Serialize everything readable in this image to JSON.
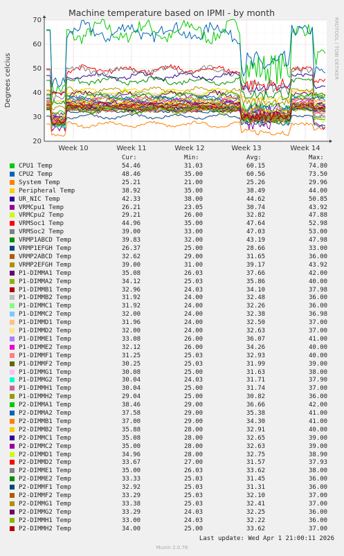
{
  "chart_data": {
    "type": "line",
    "title": "Machine temperature based on IPMI - by month",
    "ylabel": "Degrees celcius",
    "side_label": "RRDTOOL / TOBI OETIKER",
    "ylim": [
      20,
      70
    ],
    "yticks": [
      20,
      30,
      40,
      50,
      60,
      70
    ],
    "xticks": [
      "Week 10",
      "Week 11",
      "Week 12",
      "Week 13",
      "Week 14"
    ],
    "grid": true,
    "legend_headers": {
      "cur": "Cur:",
      "min": "Min:",
      "avg": "Avg:",
      "max": "Max:"
    },
    "series": [
      {
        "name": "CPU1 Temp",
        "color": "#00cc00",
        "cur": "54.46",
        "min": "31.03",
        "avg": "60.15",
        "max": "74.80"
      },
      {
        "name": "CPU2 Temp",
        "color": "#0066b3",
        "cur": "48.46",
        "min": "35.00",
        "avg": "60.56",
        "max": "73.50"
      },
      {
        "name": "System Temp",
        "color": "#ff8000",
        "cur": "25.21",
        "min": "21.00",
        "avg": "25.26",
        "max": "29.96"
      },
      {
        "name": "Peripheral Temp",
        "color": "#ffcc00",
        "cur": "38.92",
        "min": "35.00",
        "avg": "38.49",
        "max": "44.00"
      },
      {
        "name": "UR_NIC Temp",
        "color": "#330099",
        "cur": "42.33",
        "min": "38.00",
        "avg": "44.62",
        "max": "50.85"
      },
      {
        "name": "VRMCpu1 Temp",
        "color": "#990099",
        "cur": "26.21",
        "min": "23.05",
        "avg": "30.74",
        "max": "43.92"
      },
      {
        "name": "VRMCpu2 Temp",
        "color": "#ccff00",
        "cur": "29.21",
        "min": "26.00",
        "avg": "32.82",
        "max": "47.88"
      },
      {
        "name": "VRMSoc1 Temp",
        "color": "#ff0000",
        "cur": "44.96",
        "min": "35.00",
        "avg": "47.64",
        "max": "52.98"
      },
      {
        "name": "VRMSoc2 Temp",
        "color": "#808080",
        "cur": "39.00",
        "min": "33.00",
        "avg": "47.03",
        "max": "53.00"
      },
      {
        "name": "VRMP1ABCD Temp",
        "color": "#008f00",
        "cur": "39.83",
        "min": "32.00",
        "avg": "43.19",
        "max": "47.98"
      },
      {
        "name": "VRMP1EFGH Temp",
        "color": "#00487d",
        "cur": "26.37",
        "min": "25.00",
        "avg": "28.66",
        "max": "33.00"
      },
      {
        "name": "VRMP2ABCD Temp",
        "color": "#b35a00",
        "cur": "32.62",
        "min": "29.00",
        "avg": "31.65",
        "max": "36.00"
      },
      {
        "name": "VRMP2EFGH Temp",
        "color": "#b38f00",
        "cur": "39.00",
        "min": "31.00",
        "avg": "39.17",
        "max": "43.92"
      },
      {
        "name": "P1-DIMMA1 Temp",
        "color": "#6b006b",
        "cur": "35.08",
        "min": "26.03",
        "avg": "37.66",
        "max": "42.00"
      },
      {
        "name": "P1-DIMMA2 Temp",
        "color": "#8fb300",
        "cur": "34.12",
        "min": "25.03",
        "avg": "35.86",
        "max": "40.00"
      },
      {
        "name": "P1-DIMMB1 Temp",
        "color": "#b30000",
        "cur": "32.96",
        "min": "24.03",
        "avg": "34.10",
        "max": "37.98"
      },
      {
        "name": "P1-DIMMB2 Temp",
        "color": "#bebebe",
        "cur": "31.92",
        "min": "24.00",
        "avg": "32.48",
        "max": "36.00"
      },
      {
        "name": "P1-DIMMC1 Temp",
        "color": "#80ff80",
        "cur": "31.92",
        "min": "24.00",
        "avg": "32.26",
        "max": "36.00"
      },
      {
        "name": "P1-DIMMC2 Temp",
        "color": "#80c9ff",
        "cur": "32.00",
        "min": "24.00",
        "avg": "32.38",
        "max": "36.98"
      },
      {
        "name": "P1-DIMMD1 Temp",
        "color": "#ffc080",
        "cur": "31.96",
        "min": "24.00",
        "avg": "32.50",
        "max": "37.00"
      },
      {
        "name": "P1-DIMMD2 Temp",
        "color": "#ffe680",
        "cur": "32.00",
        "min": "24.00",
        "avg": "32.63",
        "max": "37.00"
      },
      {
        "name": "P1-DIMME1 Temp",
        "color": "#aa80ff",
        "cur": "33.08",
        "min": "26.00",
        "avg": "36.07",
        "max": "41.00"
      },
      {
        "name": "P1-DIMME2 Temp",
        "color": "#ee00cc",
        "cur": "32.12",
        "min": "26.00",
        "avg": "34.26",
        "max": "40.00"
      },
      {
        "name": "P1-DIMMF1 Temp",
        "color": "#ff8080",
        "cur": "31.25",
        "min": "25.03",
        "avg": "32.93",
        "max": "40.00"
      },
      {
        "name": "P1-DIMMF2 Temp",
        "color": "#666600",
        "cur": "30.25",
        "min": "25.03",
        "avg": "31.99",
        "max": "39.00"
      },
      {
        "name": "P1-DIMMG1 Temp",
        "color": "#ffbfff",
        "cur": "30.08",
        "min": "25.00",
        "avg": "31.63",
        "max": "38.00"
      },
      {
        "name": "P1-DIMMG2 Temp",
        "color": "#00ffcc",
        "cur": "30.04",
        "min": "24.03",
        "avg": "31.71",
        "max": "37.90"
      },
      {
        "name": "P1-DIMMH1 Temp",
        "color": "#cc6699",
        "cur": "30.04",
        "min": "25.00",
        "avg": "31.74",
        "max": "37.00"
      },
      {
        "name": "P1-DIMMH2 Temp",
        "color": "#999900",
        "cur": "29.04",
        "min": "25.00",
        "avg": "30.82",
        "max": "36.00"
      },
      {
        "name": "P2-DIMMA1 Temp",
        "color": "#00cc00",
        "cur": "38.46",
        "min": "29.00",
        "avg": "36.66",
        "max": "42.00"
      },
      {
        "name": "P2-DIMMA2 Temp",
        "color": "#0066b3",
        "cur": "37.58",
        "min": "29.00",
        "avg": "35.38",
        "max": "41.00"
      },
      {
        "name": "P2-DIMMB1 Temp",
        "color": "#ff8000",
        "cur": "37.00",
        "min": "29.00",
        "avg": "34.30",
        "max": "41.00"
      },
      {
        "name": "P2-DIMMB2 Temp",
        "color": "#ffcc00",
        "cur": "35.88",
        "min": "28.00",
        "avg": "32.91",
        "max": "40.00"
      },
      {
        "name": "P2-DIMMC1 Temp",
        "color": "#330099",
        "cur": "35.08",
        "min": "28.00",
        "avg": "32.65",
        "max": "39.00"
      },
      {
        "name": "P2-DIMMC2 Temp",
        "color": "#990099",
        "cur": "35.00",
        "min": "28.00",
        "avg": "32.63",
        "max": "39.00"
      },
      {
        "name": "P2-DIMMD1 Temp",
        "color": "#ccff00",
        "cur": "34.96",
        "min": "28.00",
        "avg": "32.75",
        "max": "38.90"
      },
      {
        "name": "P2-DIMMD2 Temp",
        "color": "#ff0000",
        "cur": "33.67",
        "min": "27.00",
        "avg": "31.57",
        "max": "37.93"
      },
      {
        "name": "P2-DIMME1 Temp",
        "color": "#808080",
        "cur": "35.00",
        "min": "26.03",
        "avg": "33.62",
        "max": "38.00"
      },
      {
        "name": "P2-DIMME2 Temp",
        "color": "#008f00",
        "cur": "33.33",
        "min": "25.03",
        "avg": "31.45",
        "max": "36.00"
      },
      {
        "name": "P2-DIMMF1 Temp",
        "color": "#00487d",
        "cur": "32.92",
        "min": "25.03",
        "avg": "31.31",
        "max": "36.00"
      },
      {
        "name": "P2-DIMMF2 Temp",
        "color": "#b35a00",
        "cur": "33.29",
        "min": "25.03",
        "avg": "32.10",
        "max": "37.00"
      },
      {
        "name": "P2-DIMMG1 Temp",
        "color": "#b38f00",
        "cur": "33.38",
        "min": "25.03",
        "avg": "32.41",
        "max": "37.00"
      },
      {
        "name": "P2-DIMMG2 Temp",
        "color": "#6b006b",
        "cur": "33.29",
        "min": "24.03",
        "avg": "32.25",
        "max": "36.00"
      },
      {
        "name": "P2-DIMMH1 Temp",
        "color": "#8fb300",
        "cur": "33.00",
        "min": "24.03",
        "avg": "32.22",
        "max": "36.00"
      },
      {
        "name": "P2-DIMMH2 Temp",
        "color": "#b30000",
        "cur": "34.00",
        "min": "25.00",
        "avg": "33.62",
        "max": "37.00"
      }
    ]
  },
  "footer": {
    "last_update": "Last update: Wed Apr  1 21:00:11 2026",
    "munin_version": "Munin 2.0.76"
  }
}
